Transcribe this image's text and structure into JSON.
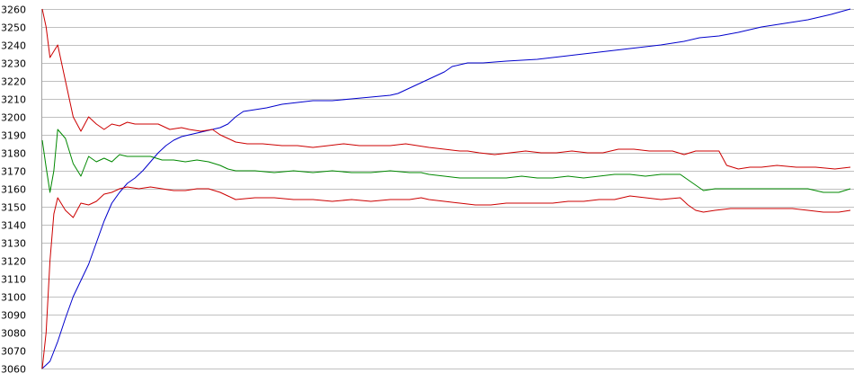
{
  "chart_data": {
    "type": "line",
    "title": "",
    "xlabel": "",
    "ylabel": "",
    "ylim": [
      3060,
      3260
    ],
    "xlim": [
      0,
      209
    ],
    "grid": true,
    "legend": "none",
    "y_ticks": [
      3060,
      3070,
      3080,
      3090,
      3100,
      3110,
      3120,
      3130,
      3140,
      3150,
      3160,
      3170,
      3180,
      3190,
      3200,
      3210,
      3220,
      3230,
      3240,
      3250,
      3260
    ],
    "y_tick_labels": [
      "3060",
      "3070",
      "3080",
      "3090",
      "3100",
      "3110",
      "3120",
      "3130",
      "3140",
      "3150",
      "3160",
      "3170",
      "3180",
      "3190",
      "3200",
      "3210",
      "3220",
      "3230",
      "3240",
      "3250",
      "3260"
    ],
    "series": [
      {
        "color": "#0000cc",
        "points": [
          [
            0,
            3060
          ],
          [
            2,
            3064
          ],
          [
            4,
            3075
          ],
          [
            6,
            3088
          ],
          [
            8,
            3100
          ],
          [
            10,
            3109
          ],
          [
            12,
            3118
          ],
          [
            14,
            3130
          ],
          [
            16,
            3142
          ],
          [
            18,
            3152
          ],
          [
            20,
            3158
          ],
          [
            22,
            3163
          ],
          [
            24,
            3166
          ],
          [
            26,
            3170
          ],
          [
            28,
            3175
          ],
          [
            30,
            3180
          ],
          [
            32,
            3184
          ],
          [
            34,
            3187
          ],
          [
            36,
            3189
          ],
          [
            38,
            3190
          ],
          [
            40,
            3191
          ],
          [
            42,
            3192
          ],
          [
            44,
            3193
          ],
          [
            46,
            3194
          ],
          [
            48,
            3196
          ],
          [
            50,
            3200
          ],
          [
            52,
            3203
          ],
          [
            55,
            3204
          ],
          [
            58,
            3205
          ],
          [
            62,
            3207
          ],
          [
            66,
            3208
          ],
          [
            70,
            3209
          ],
          [
            75,
            3209
          ],
          [
            80,
            3210
          ],
          [
            85,
            3211
          ],
          [
            90,
            3212
          ],
          [
            92,
            3213
          ],
          [
            95,
            3216
          ],
          [
            98,
            3219
          ],
          [
            100,
            3221
          ],
          [
            102,
            3223
          ],
          [
            104,
            3225
          ],
          [
            106,
            3228
          ],
          [
            108,
            3229
          ],
          [
            110,
            3230
          ],
          [
            114,
            3230
          ],
          [
            120,
            3231
          ],
          [
            128,
            3232
          ],
          [
            136,
            3234
          ],
          [
            144,
            3236
          ],
          [
            152,
            3238
          ],
          [
            160,
            3240
          ],
          [
            166,
            3242
          ],
          [
            170,
            3244
          ],
          [
            175,
            3245
          ],
          [
            180,
            3247
          ],
          [
            186,
            3250
          ],
          [
            192,
            3252
          ],
          [
            198,
            3254
          ],
          [
            204,
            3257
          ],
          [
            209,
            3260
          ]
        ]
      },
      {
        "color": "#cc0000",
        "points": [
          [
            0,
            3260
          ],
          [
            1,
            3250
          ],
          [
            2,
            3233
          ],
          [
            4,
            3240
          ],
          [
            6,
            3220
          ],
          [
            8,
            3200
          ],
          [
            10,
            3192
          ],
          [
            12,
            3200
          ],
          [
            14,
            3196
          ],
          [
            16,
            3193
          ],
          [
            18,
            3196
          ],
          [
            20,
            3195
          ],
          [
            22,
            3197
          ],
          [
            24,
            3196
          ],
          [
            27,
            3196
          ],
          [
            30,
            3196
          ],
          [
            33,
            3193
          ],
          [
            36,
            3194
          ],
          [
            38,
            3193
          ],
          [
            41,
            3192
          ],
          [
            44,
            3193
          ],
          [
            46,
            3190
          ],
          [
            48,
            3188
          ],
          [
            50,
            3186
          ],
          [
            53,
            3185
          ],
          [
            57,
            3185
          ],
          [
            62,
            3184
          ],
          [
            66,
            3184
          ],
          [
            70,
            3183
          ],
          [
            74,
            3184
          ],
          [
            78,
            3185
          ],
          [
            82,
            3184
          ],
          [
            86,
            3184
          ],
          [
            90,
            3184
          ],
          [
            94,
            3185
          ],
          [
            97,
            3184
          ],
          [
            100,
            3183
          ],
          [
            104,
            3182
          ],
          [
            108,
            3181
          ],
          [
            110,
            3181
          ],
          [
            113,
            3180
          ],
          [
            117,
            3179
          ],
          [
            121,
            3180
          ],
          [
            125,
            3181
          ],
          [
            129,
            3180
          ],
          [
            133,
            3180
          ],
          [
            137,
            3181
          ],
          [
            141,
            3180
          ],
          [
            145,
            3180
          ],
          [
            149,
            3182
          ],
          [
            153,
            3182
          ],
          [
            157,
            3181
          ],
          [
            160,
            3181
          ],
          [
            163,
            3181
          ],
          [
            166,
            3179
          ],
          [
            169,
            3181
          ],
          [
            172,
            3181
          ],
          [
            175,
            3181
          ],
          [
            177,
            3173
          ],
          [
            180,
            3171
          ],
          [
            183,
            3172
          ],
          [
            186,
            3172
          ],
          [
            190,
            3173
          ],
          [
            195,
            3172
          ],
          [
            200,
            3172
          ],
          [
            205,
            3171
          ],
          [
            209,
            3172
          ]
        ]
      },
      {
        "color": "#008800",
        "points": [
          [
            0,
            3187
          ],
          [
            1,
            3172
          ],
          [
            2,
            3158
          ],
          [
            3,
            3170
          ],
          [
            4,
            3193
          ],
          [
            6,
            3188
          ],
          [
            8,
            3174
          ],
          [
            10,
            3167
          ],
          [
            12,
            3178
          ],
          [
            14,
            3175
          ],
          [
            16,
            3177
          ],
          [
            18,
            3175
          ],
          [
            20,
            3179
          ],
          [
            22,
            3178
          ],
          [
            25,
            3178
          ],
          [
            28,
            3178
          ],
          [
            31,
            3176
          ],
          [
            34,
            3176
          ],
          [
            37,
            3175
          ],
          [
            40,
            3176
          ],
          [
            43,
            3175
          ],
          [
            46,
            3173
          ],
          [
            48,
            3171
          ],
          [
            50,
            3170
          ],
          [
            55,
            3170
          ],
          [
            60,
            3169
          ],
          [
            65,
            3170
          ],
          [
            70,
            3169
          ],
          [
            75,
            3170
          ],
          [
            80,
            3169
          ],
          [
            85,
            3169
          ],
          [
            90,
            3170
          ],
          [
            95,
            3169
          ],
          [
            98,
            3169
          ],
          [
            100,
            3168
          ],
          [
            104,
            3167
          ],
          [
            108,
            3166
          ],
          [
            112,
            3166
          ],
          [
            116,
            3166
          ],
          [
            120,
            3166
          ],
          [
            124,
            3167
          ],
          [
            128,
            3166
          ],
          [
            132,
            3166
          ],
          [
            136,
            3167
          ],
          [
            140,
            3166
          ],
          [
            144,
            3167
          ],
          [
            148,
            3168
          ],
          [
            152,
            3168
          ],
          [
            156,
            3167
          ],
          [
            160,
            3168
          ],
          [
            165,
            3168
          ],
          [
            167,
            3165
          ],
          [
            169,
            3162
          ],
          [
            171,
            3159
          ],
          [
            174,
            3160
          ],
          [
            178,
            3160
          ],
          [
            182,
            3160
          ],
          [
            186,
            3160
          ],
          [
            190,
            3160
          ],
          [
            194,
            3160
          ],
          [
            198,
            3160
          ],
          [
            202,
            3158
          ],
          [
            206,
            3158
          ],
          [
            209,
            3160
          ]
        ]
      },
      {
        "color": "#cc0000",
        "points": [
          [
            0,
            3060
          ],
          [
            1,
            3080
          ],
          [
            2,
            3120
          ],
          [
            3,
            3146
          ],
          [
            4,
            3155
          ],
          [
            6,
            3148
          ],
          [
            8,
            3144
          ],
          [
            10,
            3152
          ],
          [
            12,
            3151
          ],
          [
            14,
            3153
          ],
          [
            16,
            3157
          ],
          [
            18,
            3158
          ],
          [
            20,
            3160
          ],
          [
            22,
            3161
          ],
          [
            25,
            3160
          ],
          [
            28,
            3161
          ],
          [
            31,
            3160
          ],
          [
            34,
            3159
          ],
          [
            37,
            3159
          ],
          [
            40,
            3160
          ],
          [
            43,
            3160
          ],
          [
            46,
            3158
          ],
          [
            48,
            3156
          ],
          [
            50,
            3154
          ],
          [
            55,
            3155
          ],
          [
            60,
            3155
          ],
          [
            65,
            3154
          ],
          [
            70,
            3154
          ],
          [
            75,
            3153
          ],
          [
            80,
            3154
          ],
          [
            85,
            3153
          ],
          [
            90,
            3154
          ],
          [
            95,
            3154
          ],
          [
            98,
            3155
          ],
          [
            100,
            3154
          ],
          [
            104,
            3153
          ],
          [
            108,
            3152
          ],
          [
            112,
            3151
          ],
          [
            116,
            3151
          ],
          [
            120,
            3152
          ],
          [
            124,
            3152
          ],
          [
            128,
            3152
          ],
          [
            132,
            3152
          ],
          [
            136,
            3153
          ],
          [
            140,
            3153
          ],
          [
            144,
            3154
          ],
          [
            148,
            3154
          ],
          [
            152,
            3156
          ],
          [
            156,
            3155
          ],
          [
            160,
            3154
          ],
          [
            165,
            3155
          ],
          [
            167,
            3151
          ],
          [
            169,
            3148
          ],
          [
            171,
            3147
          ],
          [
            174,
            3148
          ],
          [
            178,
            3149
          ],
          [
            182,
            3149
          ],
          [
            186,
            3149
          ],
          [
            190,
            3149
          ],
          [
            194,
            3149
          ],
          [
            198,
            3148
          ],
          [
            202,
            3147
          ],
          [
            206,
            3147
          ],
          [
            209,
            3148
          ]
        ]
      }
    ]
  }
}
